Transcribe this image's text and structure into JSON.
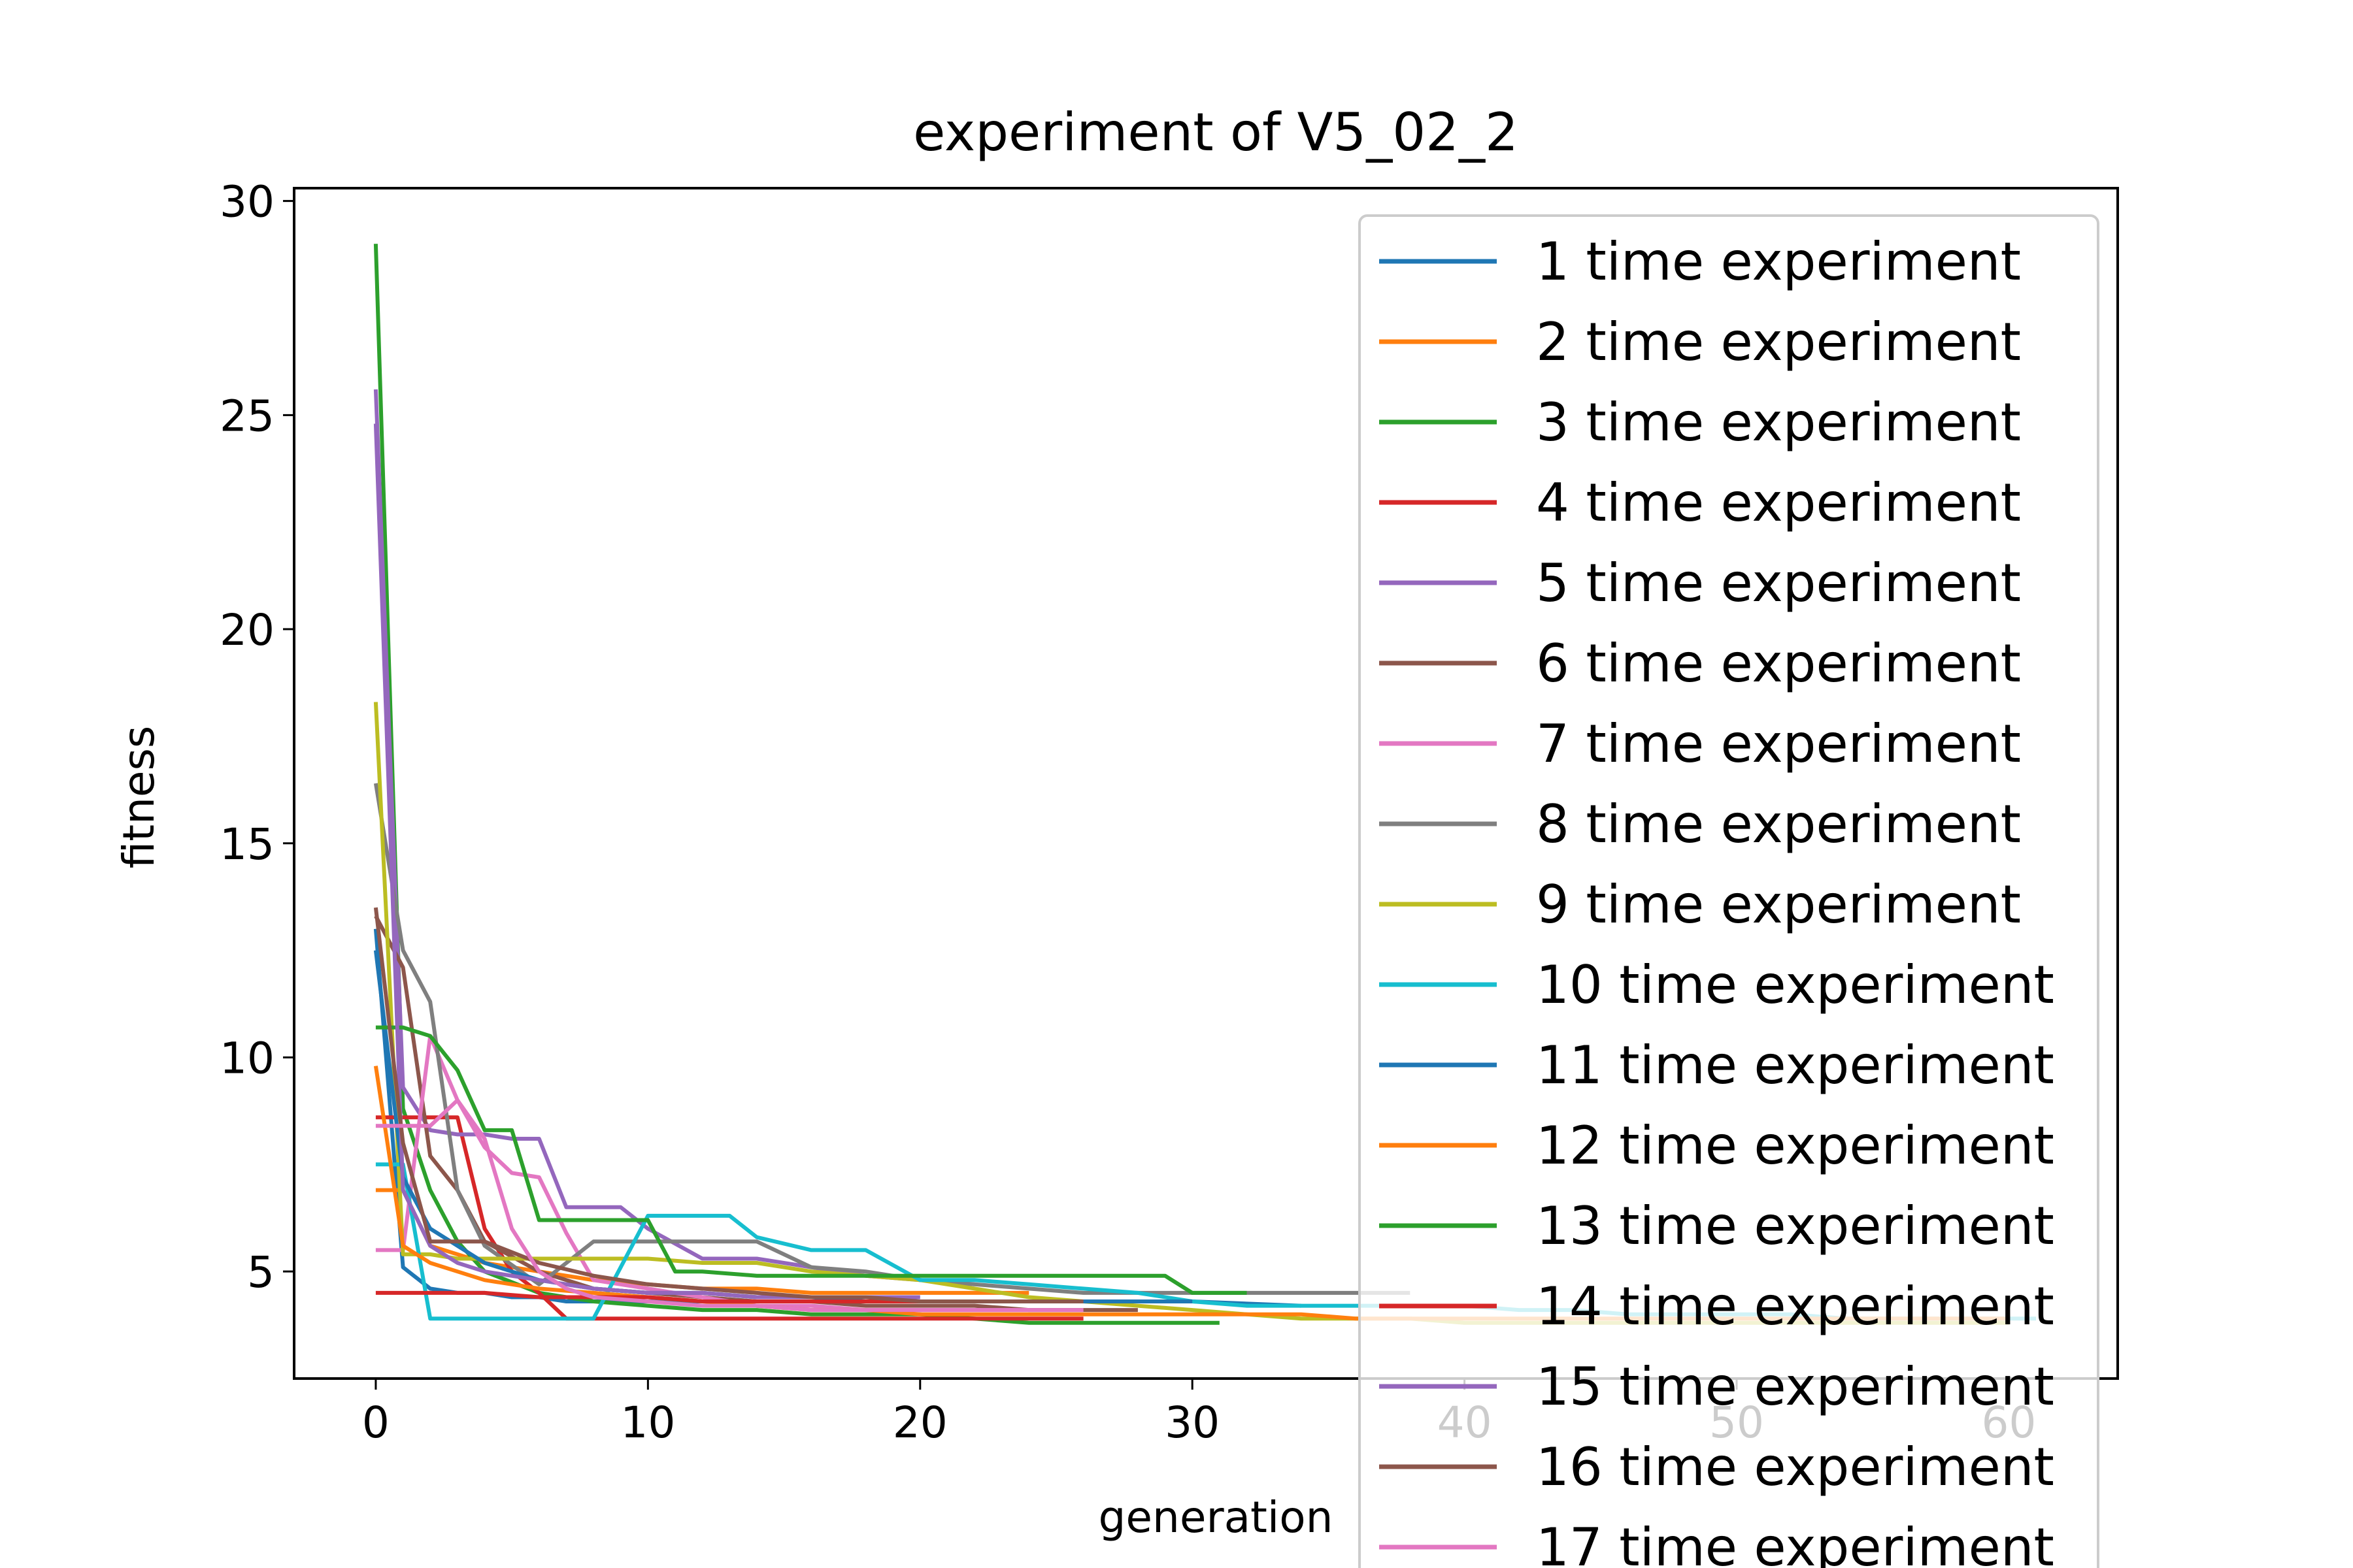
{
  "chart_data": {
    "type": "line",
    "title": "experiment of V5_02_2",
    "xlabel": "generation",
    "ylabel": "fitness",
    "xlim": [
      -3,
      64
    ],
    "ylim": [
      2.5,
      30.3
    ],
    "xticks": [
      0,
      10,
      20,
      30,
      40,
      50,
      60
    ],
    "yticks": [
      5,
      10,
      15,
      20,
      25,
      30
    ],
    "xtick_labels": [
      "0",
      "10",
      "20",
      "30",
      "40",
      "50",
      "60"
    ],
    "ytick_labels": [
      "5",
      "10",
      "15",
      "20",
      "25",
      "30"
    ],
    "grid": false,
    "legend_position": "upper-right",
    "series": [
      {
        "name": "1 time experiment",
        "color": "#1f77b4",
        "x": [
          0,
          1,
          2,
          3,
          4,
          5,
          6,
          7,
          8,
          9,
          10,
          12,
          14,
          16,
          18,
          20,
          22,
          24,
          26,
          28,
          30,
          34
        ],
        "y": [
          13.0,
          5.1,
          4.6,
          4.5,
          4.5,
          4.4,
          4.4,
          4.3,
          4.3,
          4.3,
          4.3,
          4.3,
          4.3,
          4.3,
          4.3,
          4.3,
          4.3,
          4.3,
          4.3,
          4.3,
          4.3,
          4.2
        ]
      },
      {
        "name": "2 time experiment",
        "color": "#ff7f0e",
        "x": [
          0,
          1,
          2,
          3,
          4,
          6,
          8,
          10,
          12,
          14,
          16,
          18,
          20,
          22,
          24
        ],
        "y": [
          6.9,
          6.9,
          5.6,
          5.4,
          5.2,
          5.0,
          4.8,
          4.7,
          4.6,
          4.6,
          4.5,
          4.5,
          4.5,
          4.5,
          4.5
        ]
      },
      {
        "name": "3 time experiment",
        "color": "#2ca02c",
        "x": [
          0,
          1,
          2,
          3,
          4,
          6,
          8,
          10,
          12,
          14,
          16,
          18,
          20,
          22,
          24,
          26,
          28,
          30,
          31
        ],
        "y": [
          29.0,
          8.8,
          6.9,
          5.7,
          5.0,
          4.5,
          4.3,
          4.2,
          4.1,
          4.1,
          4.0,
          4.0,
          4.0,
          3.9,
          3.8,
          3.8,
          3.8,
          3.8,
          3.8
        ]
      },
      {
        "name": "4 time experiment",
        "color": "#d62728",
        "x": [
          0,
          1,
          2,
          3,
          4,
          5,
          6,
          7,
          8,
          10,
          12,
          14,
          16,
          18,
          20,
          22,
          24,
          26
        ],
        "y": [
          8.6,
          8.6,
          8.6,
          8.6,
          6.0,
          5.0,
          4.5,
          3.9,
          3.9,
          3.9,
          3.9,
          3.9,
          3.9,
          3.9,
          3.9,
          3.9,
          3.9,
          3.9
        ]
      },
      {
        "name": "5 time experiment",
        "color": "#9467bd",
        "x": [
          0,
          1,
          2,
          3,
          4,
          5,
          6,
          7,
          8,
          9,
          10,
          12,
          14,
          16,
          18,
          20,
          22
        ],
        "y": [
          25.6,
          9.3,
          8.3,
          8.2,
          8.2,
          8.1,
          8.1,
          6.5,
          6.5,
          6.5,
          6.0,
          5.3,
          5.3,
          5.1,
          4.9,
          4.8,
          4.7
        ]
      },
      {
        "name": "6 time experiment",
        "color": "#8c564b",
        "x": [
          0,
          1,
          2,
          3,
          4,
          6,
          8,
          10,
          12,
          14,
          16,
          18,
          20,
          22,
          24,
          26,
          28
        ],
        "y": [
          13.3,
          12.1,
          7.7,
          6.9,
          5.7,
          5.0,
          4.6,
          4.5,
          4.4,
          4.3,
          4.3,
          4.2,
          4.2,
          4.2,
          4.1,
          4.1,
          4.1
        ]
      },
      {
        "name": "7 time experiment",
        "color": "#e377c2",
        "x": [
          0,
          1,
          2,
          3,
          4,
          5,
          6,
          7,
          8,
          10,
          12,
          14,
          16,
          18,
          20,
          22,
          24,
          26
        ],
        "y": [
          5.5,
          5.5,
          10.5,
          9.0,
          7.9,
          7.3,
          7.2,
          5.9,
          4.8,
          4.6,
          4.4,
          4.2,
          4.2,
          4.1,
          4.1,
          4.1,
          4.1,
          4.1
        ]
      },
      {
        "name": "8 time experiment",
        "color": "#7f7f7f",
        "x": [
          0,
          1,
          2,
          3,
          4,
          6,
          8,
          10,
          12,
          14,
          16,
          18,
          20,
          22,
          24,
          26,
          28,
          30,
          32,
          34,
          36,
          38
        ],
        "y": [
          16.4,
          12.5,
          11.3,
          6.9,
          5.6,
          4.7,
          5.7,
          5.7,
          5.7,
          5.7,
          5.1,
          5.0,
          4.8,
          4.7,
          4.6,
          4.5,
          4.5,
          4.5,
          4.5,
          4.5,
          4.5,
          4.5
        ]
      },
      {
        "name": "9 time experiment",
        "color": "#bcbd22",
        "x": [
          0,
          1,
          2,
          3,
          4,
          6,
          8,
          10,
          12,
          14,
          16,
          18,
          20,
          22,
          24,
          26,
          28,
          30,
          32,
          34,
          36,
          38,
          40,
          42,
          44,
          46,
          48,
          50,
          52,
          54,
          56,
          58,
          60
        ],
        "y": [
          18.3,
          5.4,
          5.4,
          5.3,
          5.3,
          5.3,
          5.3,
          5.3,
          5.2,
          5.2,
          5.0,
          4.9,
          4.8,
          4.6,
          4.4,
          4.3,
          4.2,
          4.1,
          4.0,
          3.9,
          3.9,
          3.9,
          3.8,
          3.8,
          3.8,
          3.8,
          3.8,
          3.8,
          3.8,
          3.8,
          3.8,
          3.8,
          3.8
        ]
      },
      {
        "name": "10 time experiment",
        "color": "#17becf",
        "x": [
          0,
          1,
          2,
          3,
          4,
          6,
          8,
          10,
          12,
          13,
          14,
          16,
          18,
          20,
          22,
          24,
          26,
          28,
          30,
          32,
          34,
          36,
          38,
          40,
          42,
          44,
          46,
          48,
          50,
          52,
          54,
          56,
          58,
          60,
          61
        ],
        "y": [
          7.5,
          7.5,
          3.9,
          3.9,
          3.9,
          3.9,
          3.9,
          6.3,
          6.3,
          6.3,
          5.8,
          5.5,
          5.5,
          4.8,
          4.8,
          4.7,
          4.6,
          4.5,
          4.3,
          4.2,
          4.2,
          4.2,
          4.2,
          4.2,
          4.1,
          4.1,
          4.0,
          4.0,
          4.0,
          4.0,
          3.9,
          3.9,
          3.9,
          3.9,
          3.9
        ]
      },
      {
        "name": "11 time experiment",
        "color": "#1f77b4",
        "x": [
          0,
          1,
          2,
          3,
          4,
          5,
          6,
          8,
          10,
          12,
          14,
          16,
          18,
          20,
          22,
          24,
          26,
          28,
          30
        ],
        "y": [
          12.5,
          7.2,
          6.0,
          5.6,
          5.2,
          5.0,
          4.8,
          4.6,
          4.5,
          4.5,
          4.4,
          4.4,
          4.3,
          4.3,
          4.3,
          4.3,
          4.3,
          4.3,
          4.3
        ]
      },
      {
        "name": "12 time experiment",
        "color": "#ff7f0e",
        "x": [
          0,
          1,
          2,
          3,
          4,
          6,
          8,
          10,
          12,
          14,
          16,
          18,
          20,
          22,
          24,
          26,
          28,
          30,
          32,
          34,
          36,
          38,
          40,
          42,
          44,
          46,
          48,
          50,
          52,
          54,
          56,
          58,
          60
        ],
        "y": [
          9.8,
          5.6,
          5.2,
          5.0,
          4.8,
          4.6,
          4.5,
          4.4,
          4.3,
          4.2,
          4.1,
          4.1,
          4.0,
          4.0,
          4.0,
          4.0,
          4.0,
          4.0,
          4.0,
          4.0,
          3.9,
          3.9,
          3.9,
          3.9,
          3.9,
          3.9,
          3.9,
          3.9,
          3.9,
          3.9,
          3.9,
          3.9,
          3.9
        ]
      },
      {
        "name": "13 time experiment",
        "color": "#2ca02c",
        "x": [
          0,
          1,
          2,
          3,
          4,
          5,
          6,
          7,
          8,
          10,
          11,
          12,
          14,
          16,
          18,
          20,
          22,
          24,
          26,
          28,
          29,
          30,
          32
        ],
        "y": [
          10.7,
          10.7,
          10.5,
          9.7,
          8.3,
          8.3,
          6.2,
          6.2,
          6.2,
          6.2,
          5.0,
          5.0,
          4.9,
          4.9,
          4.9,
          4.9,
          4.9,
          4.9,
          4.9,
          4.9,
          4.9,
          4.5,
          4.5
        ]
      },
      {
        "name": "14 time experiment",
        "color": "#d62728",
        "x": [
          0,
          1,
          2,
          4,
          6,
          8,
          10,
          12,
          14,
          16,
          18,
          20,
          22,
          24
        ],
        "y": [
          4.5,
          4.5,
          4.5,
          4.5,
          4.4,
          4.4,
          4.4,
          4.3,
          4.3,
          4.3,
          4.3,
          4.3,
          4.3,
          4.3
        ]
      },
      {
        "name": "15 time experiment",
        "color": "#9467bd",
        "x": [
          0,
          1,
          2,
          3,
          4,
          6,
          8,
          10,
          12,
          14,
          16,
          18,
          20
        ],
        "y": [
          24.8,
          6.9,
          5.6,
          5.2,
          5.0,
          4.8,
          4.6,
          4.5,
          4.5,
          4.4,
          4.4,
          4.4,
          4.4
        ]
      },
      {
        "name": "16 time experiment",
        "color": "#8c564b",
        "x": [
          0,
          1,
          2,
          3,
          4,
          6,
          8,
          10,
          12,
          14,
          16,
          18,
          20,
          22,
          24,
          26
        ],
        "y": [
          13.5,
          8.0,
          5.7,
          5.7,
          5.7,
          5.2,
          4.9,
          4.7,
          4.6,
          4.5,
          4.4,
          4.4,
          4.3,
          4.3,
          4.3,
          4.3
        ]
      },
      {
        "name": "17 time experiment",
        "color": "#e377c2",
        "x": [
          0,
          1,
          2,
          3,
          4,
          5,
          6,
          7,
          8,
          10,
          12,
          14,
          16,
          18,
          20,
          22,
          24
        ],
        "y": [
          8.4,
          8.4,
          8.4,
          9.0,
          8.1,
          6.0,
          5.0,
          4.6,
          4.4,
          4.3,
          4.2,
          4.2,
          4.1,
          4.1,
          4.1,
          4.1,
          4.1
        ]
      }
    ]
  }
}
